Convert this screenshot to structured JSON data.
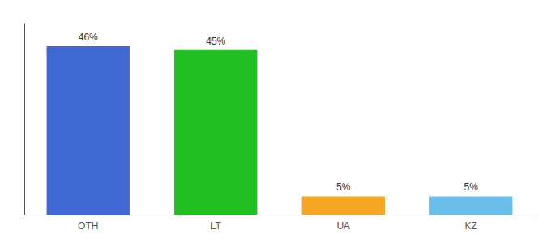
{
  "chart_data": {
    "type": "bar",
    "categories": [
      "OTH",
      "LT",
      "UA",
      "KZ"
    ],
    "values": [
      46,
      45,
      5,
      5
    ],
    "value_labels": [
      "46%",
      "45%",
      "5%",
      "5%"
    ],
    "colors": [
      "#4169d4",
      "#22c020",
      "#f5a623",
      "#6bbfed"
    ],
    "ylim": [
      0,
      52
    ],
    "data_labels": true,
    "tick_labels": "x",
    "grid": false
  }
}
